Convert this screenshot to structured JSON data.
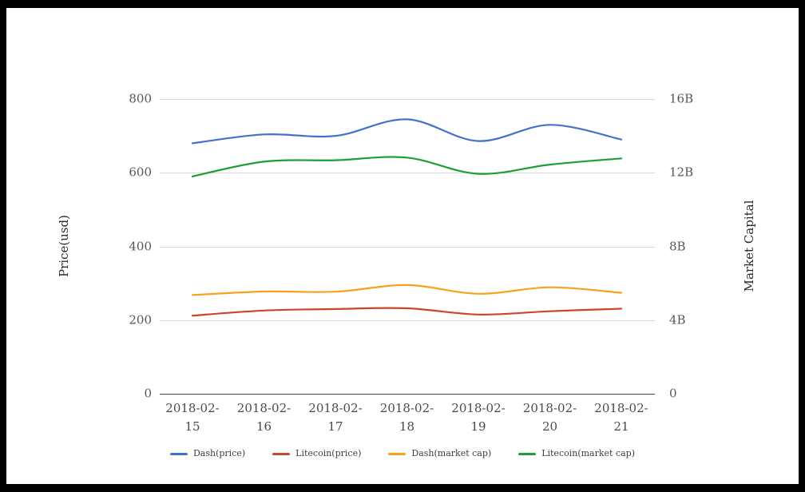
{
  "chart_data": {
    "type": "line",
    "title": "",
    "x": [
      "2018-02-15",
      "2018-02-16",
      "2018-02-17",
      "2018-02-18",
      "2018-02-19",
      "2018-02-20",
      "2018-02-21"
    ],
    "ylabel_left": "Price(usd)",
    "ylabel_right": "Market Capital",
    "axes": {
      "left": {
        "tick_labels": [
          "0",
          "200",
          "400",
          "600",
          "800"
        ],
        "tick_values": [
          0,
          200,
          400,
          600,
          800
        ],
        "range": [
          0,
          800
        ]
      },
      "right": {
        "tick_labels": [
          "0",
          "4B",
          "8B",
          "12B",
          "16B"
        ],
        "tick_values": [
          0,
          4,
          8,
          12,
          16
        ],
        "range": [
          0,
          16
        ]
      }
    },
    "grid": true,
    "smooth": true,
    "legend_position": "bottom",
    "series": [
      {
        "name": "Dash(price)",
        "axis": "left",
        "color": "#4471c9",
        "values": [
          680,
          704,
          700,
          745,
          686,
          730,
          690
        ]
      },
      {
        "name": "Litecoin(price)",
        "axis": "left",
        "color": "#cb4628",
        "values": [
          212,
          226,
          230,
          232,
          215,
          224,
          231
        ]
      },
      {
        "name": "Dash(market cap)",
        "axis": "right",
        "color": "#f6a21d",
        "values": [
          5.36,
          5.55,
          5.54,
          5.9,
          5.43,
          5.78,
          5.48
        ]
      },
      {
        "name": "Litecoin(market cap)",
        "axis": "right",
        "color": "#1e9e35",
        "values": [
          11.8,
          12.6,
          12.68,
          12.82,
          11.94,
          12.44,
          12.78
        ]
      }
    ]
  }
}
